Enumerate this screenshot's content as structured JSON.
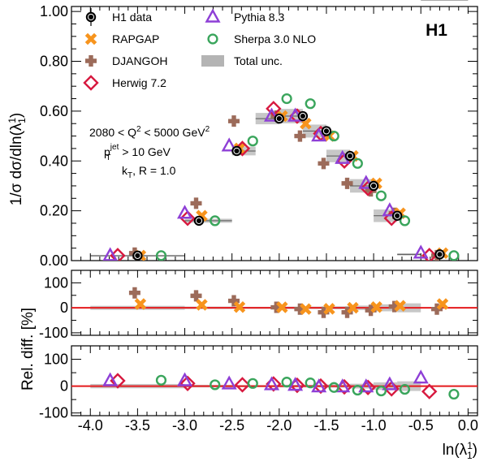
{
  "chart_data": {
    "type": "scatter",
    "badge": "H1",
    "annotations": [
      "2080 < Q² < 5000 GeV²",
      "p_T^jet > 10 GeV",
      "k_T, R = 1.0"
    ],
    "annotation_parts": {
      "q2_prefix": "2080 < Q",
      "q2_mid": " < 5000 GeV",
      "sup2": "2",
      "pt_p": "p",
      "pt_sup": "jet",
      "pt_sub": "T",
      "pt_rest": " > 10 GeV",
      "kt_k": "k",
      "kt_sub": "T",
      "kt_rest": ", R = 1.0"
    },
    "xlabel": "ln(λ¹₁)",
    "xlabel_parts": {
      "pre": "ln(λ",
      "sup": "1",
      "sub": "1",
      "post": ")"
    },
    "ylabel_top": "1/σ dσ/dln(λ¹₁)",
    "ylabel_top_parts": {
      "pre": "1/σ dσ/dln(λ",
      "sup": "1",
      "sub": "1",
      "post": ")"
    },
    "ylabel_ratio": "Rel. diff. [%]",
    "xlim": [
      -4.2,
      0.1
    ],
    "xticks": [
      "-4.0",
      "-3.5",
      "-3.0",
      "-2.5",
      "-2.0",
      "-1.5",
      "-1.0",
      "-0.5",
      "0.0"
    ],
    "xtick_values": [
      -4.0,
      -3.5,
      -3.0,
      -2.5,
      -2.0,
      -1.5,
      -1.0,
      -0.5,
      0.0
    ],
    "top_panel": {
      "ylim": [
        0,
        1.02
      ],
      "yticks": [
        "0.00",
        "0.20",
        "0.40",
        "0.60",
        "0.80",
        "1.00"
      ],
      "ytick_values": [
        0,
        0.2,
        0.4,
        0.6,
        0.8,
        1.0
      ]
    },
    "ratio_ylim": [
      -110,
      150
    ],
    "ratio_yticks": [
      "-100",
      "0",
      "100"
    ],
    "ratio_ytick_values": [
      -100,
      0,
      100
    ],
    "legend": [
      {
        "key": "h1",
        "label": "H1 data"
      },
      {
        "key": "rapgap",
        "label": "RAPGAP"
      },
      {
        "key": "djangoh",
        "label": "DJANGOH"
      },
      {
        "key": "herwig",
        "label": "Herwig 7.2"
      },
      {
        "key": "pythia",
        "label": "Pythia 8.3"
      },
      {
        "key": "sherpa",
        "label": "Sherpa 3.0 NLO"
      },
      {
        "key": "unc",
        "label": "Total unc."
      }
    ],
    "bins": {
      "edges": [
        -4.0,
        -3.0,
        -2.5,
        -2.25,
        -2.0,
        -1.75,
        -1.5,
        -1.25,
        -1.0,
        -0.75,
        -0.5,
        0.0
      ],
      "centers": [
        -3.5,
        -2.85,
        -2.45,
        -2.0,
        -1.75,
        -1.5,
        -1.25,
        -1.0,
        -0.75,
        -0.3
      ]
    },
    "colors": {
      "h1": "#000000",
      "rapgap": "#f7941d",
      "djangoh": "#9c6b5a",
      "herwig": "#d7193f",
      "pythia": "#8e3fd6",
      "sherpa": "#3aa55c",
      "unc": "#b4b4b4",
      "ref_line": "#e41a1c"
    },
    "series": [
      {
        "key": "h1",
        "name": "H1 data",
        "x": [
          -3.5,
          -2.85,
          -2.45,
          -2.0,
          -1.75,
          -1.5,
          -1.25,
          -1.0,
          -0.75,
          -0.3
        ],
        "y": [
          0.02,
          0.16,
          0.44,
          0.57,
          0.58,
          0.52,
          0.42,
          0.3,
          0.18,
          0.025
        ]
      },
      {
        "key": "rapgap",
        "name": "RAPGAP",
        "x": [
          -3.47,
          -2.82,
          -2.42,
          -1.97,
          -1.72,
          -1.47,
          -1.22,
          -0.97,
          -0.72,
          -0.27
        ],
        "y": [
          0.02,
          0.18,
          0.45,
          0.58,
          0.55,
          0.5,
          0.42,
          0.31,
          0.19,
          0.03
        ],
        "rel_diff": [
          15,
          12,
          3,
          2,
          -5,
          -4,
          0,
          3,
          8,
          15
        ]
      },
      {
        "key": "djangoh",
        "name": "DJANGOH",
        "x": [
          -3.53,
          -2.88,
          -2.48,
          -2.03,
          -1.78,
          -1.53,
          -1.28,
          -1.03,
          -0.78,
          -0.33
        ],
        "y": [
          0.03,
          0.23,
          0.56,
          0.58,
          0.5,
          0.39,
          0.31,
          0.28,
          0.19,
          0.02
        ],
        "rel_diff": [
          60,
          48,
          28,
          2,
          -5,
          -18,
          -18,
          -10,
          5,
          -5
        ]
      },
      {
        "key": "herwig",
        "name": "Herwig 7.2",
        "x": [
          -3.71,
          -2.97,
          -2.39,
          -2.06,
          -1.81,
          -1.56,
          -1.31,
          -1.06,
          -0.81,
          -0.41
        ],
        "y": [
          0.02,
          0.17,
          0.45,
          0.61,
          0.58,
          0.51,
          0.4,
          0.29,
          0.17,
          0.02
        ],
        "rel_diff": [
          20,
          10,
          5,
          8,
          3,
          0,
          -3,
          -5,
          -10,
          -20
        ]
      },
      {
        "key": "pythia",
        "name": "Pythia 8.3",
        "x": [
          -3.79,
          -3.0,
          -2.53,
          -2.08,
          -1.83,
          -1.58,
          -1.33,
          -1.08,
          -0.83,
          -0.5
        ],
        "y": [
          0.02,
          0.19,
          0.46,
          0.58,
          0.58,
          0.5,
          0.41,
          0.31,
          0.2,
          0.03
        ],
        "rel_diff": [
          20,
          20,
          8,
          5,
          3,
          -3,
          -3,
          -3,
          5,
          30
        ]
      },
      {
        "key": "sherpa",
        "name": "Sherpa 3.0 NLO",
        "x": [
          -3.25,
          -2.68,
          -2.28,
          -1.92,
          -1.67,
          -1.42,
          -1.17,
          -0.92,
          -0.67,
          -0.15
        ],
        "y": [
          0.02,
          0.16,
          0.48,
          0.65,
          0.63,
          0.5,
          0.39,
          0.26,
          0.16,
          0.02
        ],
        "rel_diff": [
          22,
          5,
          10,
          15,
          12,
          -5,
          -15,
          -18,
          -12,
          -30
        ]
      }
    ],
    "total_unc_pct": [
      8,
      5,
      4,
      4,
      5,
      5,
      6,
      9,
      14,
      18
    ]
  }
}
